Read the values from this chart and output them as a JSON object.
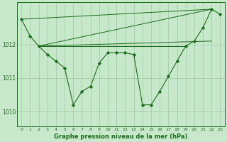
{
  "background_color": "#c8e8cc",
  "grid_color": "#99cc99",
  "line_color": "#1a6b1a",
  "title": "Graphe pression niveau de la mer (hPa)",
  "ylim": [
    1009.55,
    1013.25
  ],
  "xlim": [
    -0.5,
    23.5
  ],
  "yticks": [
    1010,
    1011,
    1012
  ],
  "xticks": [
    0,
    1,
    2,
    3,
    4,
    5,
    6,
    7,
    8,
    9,
    10,
    11,
    12,
    13,
    14,
    15,
    16,
    17,
    18,
    19,
    20,
    21,
    22,
    23
  ],
  "main_series_x": [
    0,
    1,
    2,
    3,
    4,
    5,
    6,
    7,
    8,
    9,
    10,
    11,
    12,
    13,
    14,
    15,
    16,
    17,
    18,
    19,
    20,
    21,
    22,
    23
  ],
  "main_series_y": [
    1012.75,
    1012.25,
    1011.95,
    1011.7,
    1011.5,
    1011.3,
    1010.2,
    1010.6,
    1010.75,
    1011.45,
    1011.75,
    1011.75,
    1011.75,
    1011.7,
    1010.2,
    1010.2,
    1010.6,
    1011.05,
    1011.5,
    1011.95,
    1012.1,
    1012.5,
    1013.05,
    1012.9
  ],
  "flat_lines": [
    {
      "x": [
        0,
        22
      ],
      "y": [
        1012.75,
        1013.05
      ]
    },
    {
      "x": [
        2,
        22
      ],
      "y": [
        1011.95,
        1013.05
      ]
    },
    {
      "x": [
        2,
        19
      ],
      "y": [
        1011.95,
        1011.95
      ]
    },
    {
      "x": [
        2,
        22
      ],
      "y": [
        1011.95,
        1012.1
      ]
    }
  ]
}
